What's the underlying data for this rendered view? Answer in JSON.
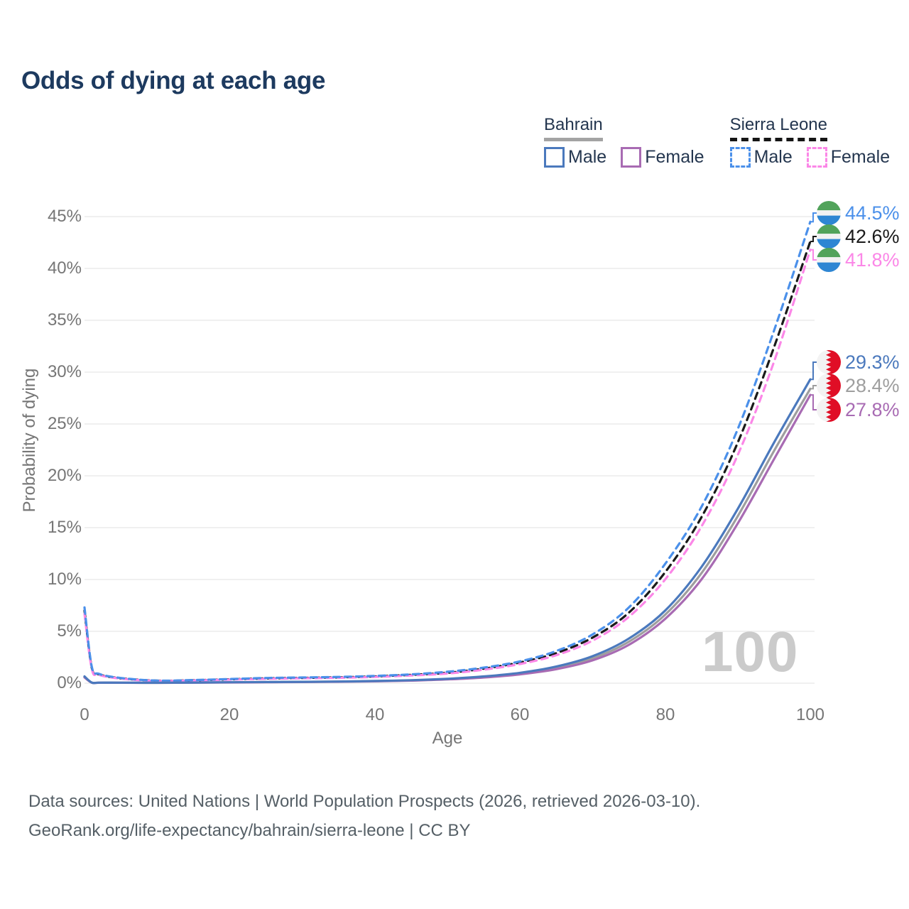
{
  "title": "Odds of dying at each age",
  "legend": {
    "groups": [
      {
        "title": "Bahrain",
        "line_style": "solid",
        "underline_color": "#a3a3a3",
        "items": [
          {
            "label": "Male",
            "color": "#4b79bd",
            "dash": false
          },
          {
            "label": "Female",
            "color": "#a86bb3",
            "dash": false
          }
        ]
      },
      {
        "title": "Sierra Leone",
        "line_style": "dashed",
        "underline_color": "#151515",
        "items": [
          {
            "label": "Male",
            "color": "#4b90ea",
            "dash": true
          },
          {
            "label": "Female",
            "color": "#fb87e7",
            "dash": true
          }
        ]
      }
    ]
  },
  "watermark": "100",
  "chart_data": {
    "type": "line",
    "title": "Odds of dying at each age",
    "xlabel": "Age",
    "ylabel": "Probability of dying",
    "x_range": [
      0,
      100
    ],
    "y_range": [
      0,
      45
    ],
    "xticks": [
      0,
      20,
      40,
      60,
      80,
      100
    ],
    "yticks": [
      0,
      5,
      10,
      15,
      20,
      25,
      30,
      35,
      40,
      45
    ],
    "ytick_suffix": "%",
    "grid": true,
    "legend_position": "top-right",
    "ages": [
      0,
      1,
      2,
      5,
      10,
      15,
      20,
      25,
      30,
      35,
      40,
      45,
      50,
      55,
      60,
      65,
      70,
      75,
      80,
      85,
      90,
      95,
      100
    ],
    "series": [
      {
        "id": "sierra-leone-male",
        "name": "Sierra Leone Male",
        "color": "#4b90ea",
        "dash": "9 7",
        "flag": "sierra-leone",
        "end_label": "44.5%",
        "values": [
          7.3,
          1.6,
          0.9,
          0.5,
          0.25,
          0.3,
          0.4,
          0.5,
          0.55,
          0.6,
          0.7,
          0.85,
          1.1,
          1.5,
          2.1,
          3.1,
          4.7,
          7.3,
          11.5,
          17.0,
          24.5,
          34.0,
          44.5
        ]
      },
      {
        "id": "sierra-leone-combined",
        "name": "Sierra Leone Combined",
        "color": "#1a1a1a",
        "dash": "9 7",
        "flag": "sierra-leone",
        "end_label": "42.6%",
        "values": [
          7.0,
          1.5,
          0.85,
          0.47,
          0.24,
          0.28,
          0.37,
          0.46,
          0.51,
          0.56,
          0.65,
          0.8,
          1.0,
          1.4,
          2.0,
          2.9,
          4.4,
          6.8,
          10.7,
          16.0,
          23.2,
          32.4,
          42.6
        ]
      },
      {
        "id": "sierra-leone-female",
        "name": "Sierra Leone Female",
        "color": "#fb87e7",
        "dash": "9 7",
        "flag": "sierra-leone",
        "end_label": "41.8%",
        "values": [
          6.7,
          1.4,
          0.8,
          0.44,
          0.22,
          0.26,
          0.34,
          0.42,
          0.47,
          0.52,
          0.6,
          0.74,
          0.93,
          1.3,
          1.85,
          2.7,
          4.1,
          6.4,
          10.0,
          15.1,
          22.0,
          31.0,
          41.8
        ]
      },
      {
        "id": "bahrain-male",
        "name": "Bahrain Male",
        "color": "#4b79bd",
        "dash": null,
        "flag": "bahrain",
        "end_label": "29.3%",
        "values": [
          0.65,
          0.06,
          0.05,
          0.05,
          0.04,
          0.06,
          0.09,
          0.11,
          0.13,
          0.16,
          0.21,
          0.29,
          0.42,
          0.65,
          1.0,
          1.6,
          2.6,
          4.3,
          7.0,
          11.2,
          16.8,
          23.2,
          29.3
        ]
      },
      {
        "id": "bahrain-combined",
        "name": "Bahrain Combined",
        "color": "#9e9e9e",
        "dash": null,
        "flag": "bahrain",
        "end_label": "28.4%",
        "values": [
          0.6,
          0.055,
          0.045,
          0.045,
          0.037,
          0.055,
          0.08,
          0.1,
          0.12,
          0.15,
          0.19,
          0.27,
          0.39,
          0.6,
          0.93,
          1.5,
          2.4,
          4.0,
          6.6,
          10.6,
          16.1,
          22.4,
          28.4
        ]
      },
      {
        "id": "bahrain-female",
        "name": "Bahrain Female",
        "color": "#a86bb3",
        "dash": null,
        "flag": "bahrain",
        "end_label": "27.8%",
        "values": [
          0.55,
          0.05,
          0.04,
          0.04,
          0.035,
          0.05,
          0.07,
          0.09,
          0.11,
          0.14,
          0.18,
          0.25,
          0.36,
          0.55,
          0.85,
          1.35,
          2.2,
          3.7,
          6.2,
          10.0,
          15.4,
          21.6,
          27.8
        ]
      }
    ]
  },
  "footer": {
    "line1": "Data sources: United Nations | World Population Prospects (2026, retrieved 2026-03-10).",
    "line2": "GeoRank.org/life-expectancy/bahrain/sierra-leone | CC BY"
  }
}
